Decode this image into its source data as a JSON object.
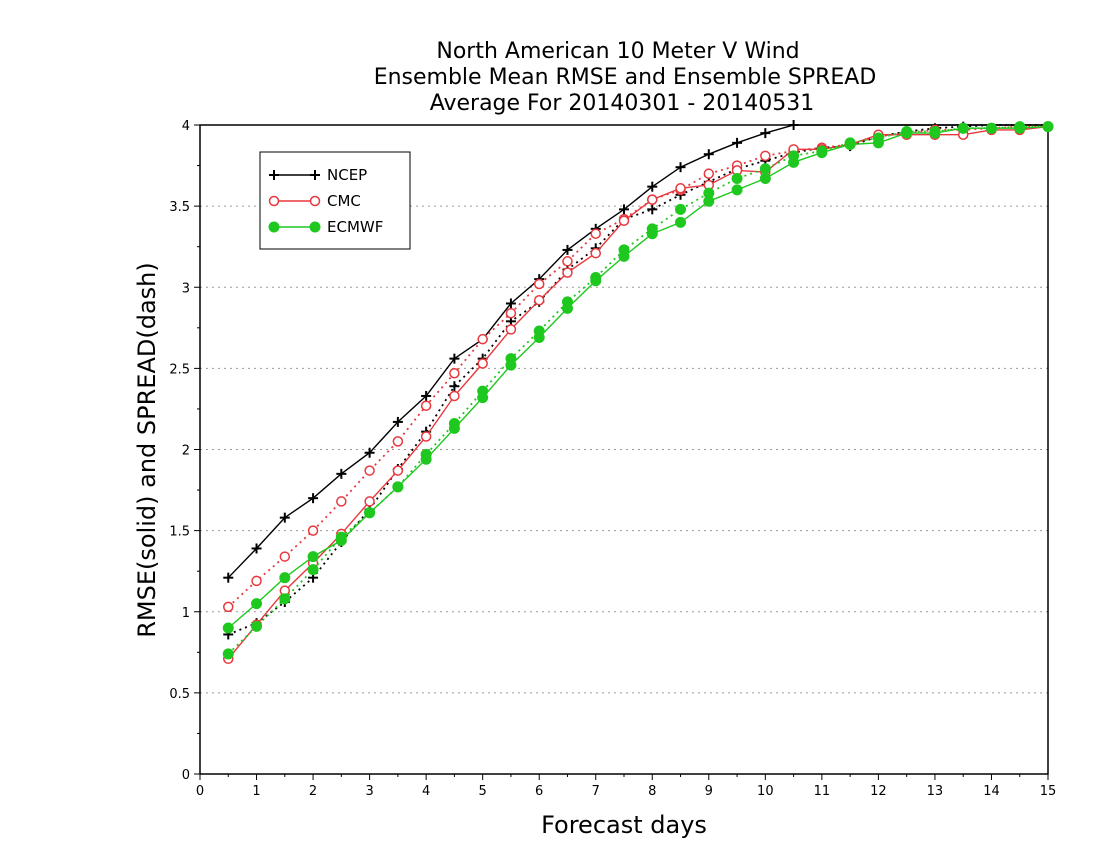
{
  "chart_data": {
    "type": "line",
    "title_lines": [
      "North American 10 Meter V Wind",
      "Ensemble Mean RMSE and Ensemble SPREAD",
      "Average For 20140301 - 20140531"
    ],
    "xlabel": "Forecast days",
    "ylabel": "RMSE(solid) and SPREAD(dash)",
    "xlim": [
      0,
      15
    ],
    "ylim": [
      0,
      4
    ],
    "x_ticks": [
      0,
      1,
      2,
      3,
      4,
      5,
      6,
      7,
      8,
      9,
      10,
      11,
      12,
      13,
      14,
      15
    ],
    "y_ticks": [
      0,
      0.5,
      1,
      1.5,
      2,
      2.5,
      3,
      3.5,
      4
    ],
    "y_tick_labels": [
      "0",
      "0.5",
      "1",
      "1.5",
      "2",
      "2.5",
      "3",
      "3.5",
      "4"
    ],
    "grid": "horizontal dotted",
    "legend_position": "top-left",
    "x": [
      0.5,
      1,
      1.5,
      2,
      2.5,
      3,
      3.5,
      4,
      4.5,
      5,
      5.5,
      6,
      6.5,
      7,
      7.5,
      8,
      8.5,
      9,
      9.5,
      10,
      10.5,
      11,
      11.5,
      12,
      12.5,
      13,
      13.5,
      14,
      14.5,
      15
    ],
    "series": [
      {
        "name": "NCEP",
        "color": "#000000",
        "marker": "plus",
        "rmse": [
          1.21,
          1.39,
          1.58,
          1.7,
          1.85,
          1.98,
          2.17,
          2.33,
          2.56,
          2.68,
          2.9,
          3.05,
          3.23,
          3.36,
          3.48,
          3.62,
          3.74,
          3.82,
          3.89,
          3.95,
          4.0,
          4.0,
          4.0,
          4.0,
          4.0,
          4.0,
          4.0,
          4.0,
          4.0,
          4.0
        ],
        "spread": [
          0.86,
          0.93,
          1.06,
          1.21,
          1.43,
          1.63,
          1.88,
          2.11,
          2.39,
          2.56,
          2.79,
          2.91,
          3.11,
          3.24,
          3.42,
          3.48,
          3.57,
          3.65,
          3.73,
          3.78,
          3.83,
          3.86,
          3.87,
          3.93,
          3.96,
          3.98,
          3.99,
          4.0,
          4.0,
          4.0
        ]
      },
      {
        "name": "CMC",
        "color": "#e8383d",
        "marker": "circle-open",
        "rmse": [
          0.71,
          0.92,
          1.13,
          1.3,
          1.48,
          1.68,
          1.87,
          2.08,
          2.33,
          2.53,
          2.74,
          2.92,
          3.09,
          3.21,
          3.41,
          3.54,
          3.61,
          3.63,
          3.72,
          3.71,
          3.85,
          3.85,
          3.88,
          3.94,
          3.94,
          3.94,
          3.94,
          3.97,
          3.97,
          3.99
        ],
        "spread": [
          1.03,
          1.19,
          1.34,
          1.5,
          1.68,
          1.87,
          2.05,
          2.27,
          2.47,
          2.68,
          2.84,
          3.02,
          3.16,
          3.33,
          3.42,
          3.54,
          3.6,
          3.7,
          3.75,
          3.81,
          3.84,
          3.86,
          3.88,
          3.93,
          3.95,
          3.97,
          3.97,
          3.98,
          3.99,
          3.99
        ]
      },
      {
        "name": "ECMWF",
        "color": "#1ec81e",
        "marker": "circle-filled",
        "rmse": [
          0.9,
          1.05,
          1.21,
          1.34,
          1.44,
          1.61,
          1.77,
          1.94,
          2.13,
          2.32,
          2.52,
          2.69,
          2.87,
          3.04,
          3.19,
          3.33,
          3.4,
          3.53,
          3.6,
          3.67,
          3.77,
          3.83,
          3.88,
          3.89,
          3.95,
          3.95,
          3.98,
          3.98,
          3.98,
          3.99
        ],
        "spread": [
          0.74,
          0.91,
          1.08,
          1.26,
          1.46,
          1.61,
          1.77,
          1.97,
          2.16,
          2.36,
          2.56,
          2.73,
          2.91,
          3.06,
          3.23,
          3.36,
          3.48,
          3.58,
          3.67,
          3.73,
          3.81,
          3.84,
          3.89,
          3.92,
          3.96,
          3.96,
          3.98,
          3.98,
          3.99,
          3.99
        ]
      }
    ]
  }
}
